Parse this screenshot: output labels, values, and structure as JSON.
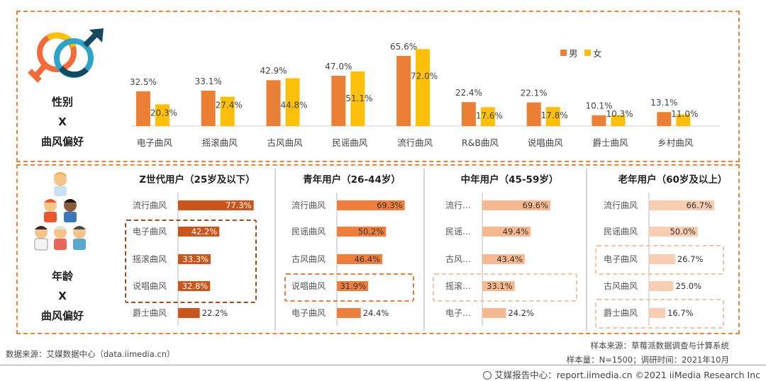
{
  "gender_section": {
    "label_lines": [
      "性别",
      "X",
      "曲风偏好"
    ]
  },
  "age_section": {
    "label_lines": [
      "年龄",
      "X",
      "曲风偏好"
    ]
  },
  "colors": {
    "male": "#eb7f35",
    "female": "#fcbf0a",
    "panel_border": "#e8843c",
    "z_bar": "#c9561c",
    "young_bar": "#ee7e3c",
    "mid_bar": "#f5b891",
    "old_bar": "#f8cdb2",
    "highlight_z": "#a2491a",
    "highlight_young": "#e27d3b",
    "highlight_soft": "#f3c3a6"
  },
  "footer": {
    "source_left": "数据来源：艾媒数据中心（data.iimedia.cn）",
    "sample_source": "样本来源：草莓派数据调查与计算系统",
    "sample_size": "样本量：N=1500；调研时间：2021年10月",
    "brand": "艾媒报告中心：report.iimedia.cn ©2021 iiMedia Research Inc"
  },
  "chart_data": [
    {
      "type": "bar",
      "title": "",
      "categories": [
        "电子曲风",
        "摇滚曲风",
        "古风曲风",
        "民谣曲风",
        "流行曲风",
        "R&B曲风",
        "说唱曲风",
        "爵士曲风",
        "乡村曲风"
      ],
      "series": [
        {
          "name": "男",
          "values": [
            32.5,
            33.1,
            42.9,
            47.0,
            65.6,
            22.4,
            22.1,
            10.1,
            13.1
          ]
        },
        {
          "name": "女",
          "values": [
            20.3,
            27.4,
            44.8,
            51.1,
            72.0,
            17.6,
            17.8,
            10.3,
            11.0
          ]
        }
      ],
      "value_labels": {
        "男": [
          "32.5%",
          "33.1%",
          "42.9%",
          "47.0%",
          "65.6%",
          "22.4%",
          "22.1%",
          "10.1%",
          "13.1%"
        ],
        "女": [
          "20.3%",
          "27.4%",
          "44.8%",
          "51.1%",
          "72.0%",
          "17.6%",
          "17.8%",
          "10.3%",
          "11.0%"
        ]
      },
      "legend": [
        "男",
        "女"
      ],
      "legend_position": "top-right",
      "ylim": [
        0,
        80
      ]
    },
    {
      "type": "bar",
      "orientation": "horizontal",
      "title": "Z世代用户（25岁及以下）",
      "categories": [
        "流行曲风",
        "电子曲风",
        "摇滚曲风",
        "说唱曲风",
        "爵士曲风"
      ],
      "values": [
        77.3,
        42.2,
        33.3,
        32.8,
        22.2
      ],
      "value_labels": [
        "77.3%",
        "42.2%",
        "33.3%",
        "32.8%",
        "22.2%"
      ],
      "xlim": [
        0,
        100
      ],
      "highlighted": [
        "电子曲风",
        "摇滚曲风",
        "说唱曲风"
      ]
    },
    {
      "type": "bar",
      "orientation": "horizontal",
      "title": "青年用户（26-44岁）",
      "categories": [
        "流行曲风",
        "民谣曲风",
        "古风曲风",
        "说唱曲风",
        "电子曲风"
      ],
      "values": [
        69.3,
        50.2,
        46.4,
        31.9,
        24.4
      ],
      "value_labels": [
        "69.3%",
        "50.2%",
        "46.4%",
        "31.9%",
        "24.4%"
      ],
      "xlim": [
        0,
        100
      ],
      "highlighted": [
        "说唱曲风"
      ]
    },
    {
      "type": "bar",
      "orientation": "horizontal",
      "title": "中年用户（45-59岁）",
      "categories": [
        "流行…",
        "民谣…",
        "古风…",
        "摇滚…",
        "电子…"
      ],
      "values": [
        69.6,
        49.4,
        43.4,
        33.1,
        24.2
      ],
      "value_labels": [
        "69.6%",
        "49.4%",
        "43.4%",
        "33.1%",
        "24.2%"
      ],
      "xlim": [
        0,
        100
      ],
      "highlighted": [
        "摇滚…"
      ]
    },
    {
      "type": "bar",
      "orientation": "horizontal",
      "title": "老年用户（60岁及以上）",
      "categories": [
        "流行曲风",
        "民谣曲风",
        "电子曲风",
        "古风曲风",
        "爵士曲风"
      ],
      "values": [
        66.7,
        50.0,
        26.7,
        25.0,
        16.7
      ],
      "value_labels": [
        "66.7%",
        "50.0%",
        "26.7%",
        "25.0%",
        "16.7%"
      ],
      "xlim": [
        0,
        100
      ],
      "highlighted": [
        "电子曲风",
        "爵士曲风"
      ]
    }
  ]
}
